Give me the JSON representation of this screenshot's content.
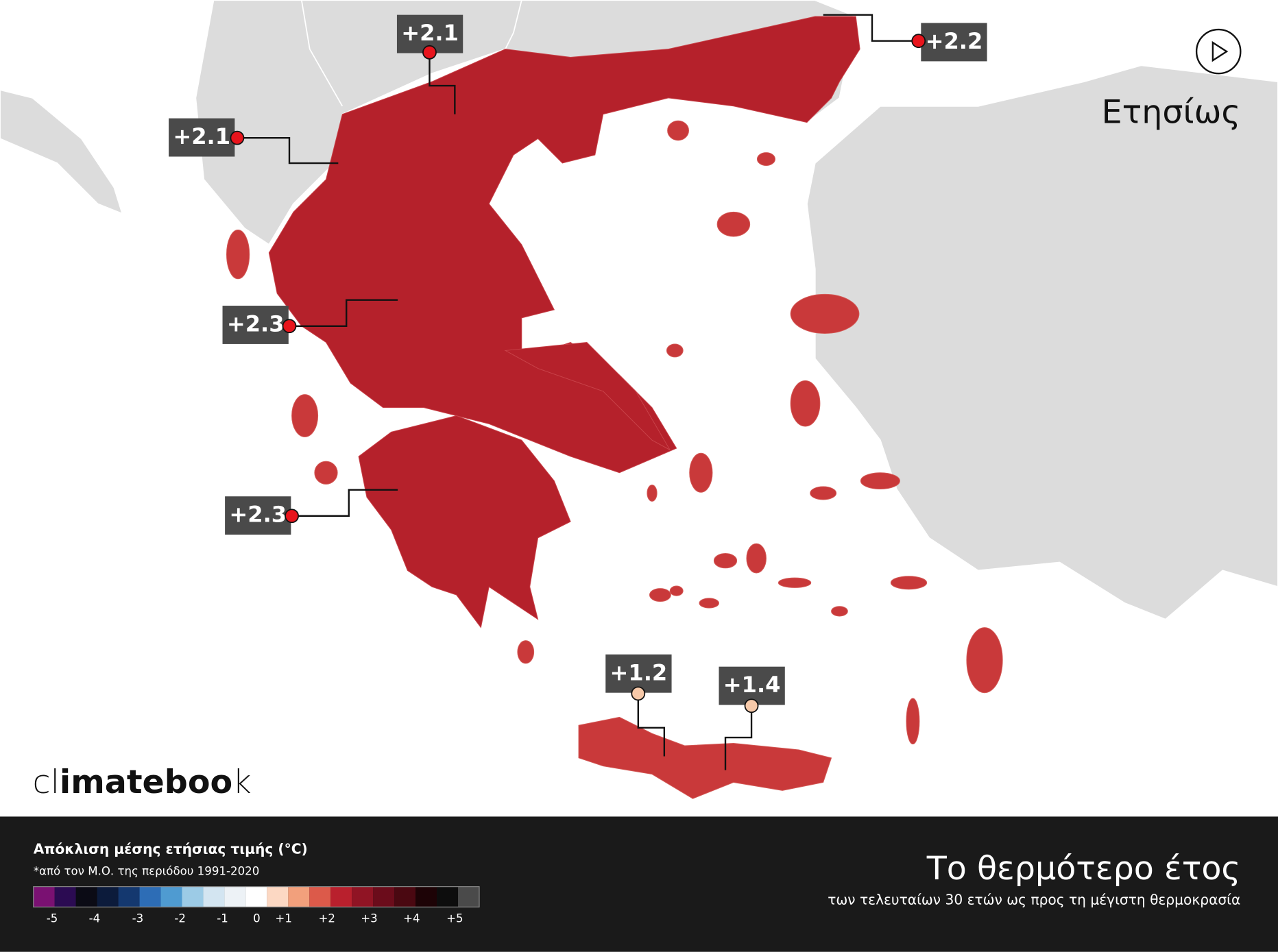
{
  "header": {
    "period": "Ετησίως"
  },
  "logo": {
    "parts": [
      "cl",
      "imateboo",
      "k"
    ]
  },
  "callouts": [
    {
      "label": "+2.1",
      "color": "#e8141c"
    },
    {
      "label": "+2.2",
      "color": "#e8141c"
    },
    {
      "label": "+2.1",
      "color": "#e8141c"
    },
    {
      "label": "+2.3",
      "color": "#e8141c"
    },
    {
      "label": "+2.3",
      "color": "#e8141c"
    },
    {
      "label": "+1.2",
      "color": "#f7c9a9"
    },
    {
      "label": "+1.4",
      "color": "#f7c9a9"
    }
  ],
  "legend": {
    "title": "Απόκλιση μέσης ετήσιας τιμής (°C)",
    "note": "*από τον Μ.Ο. της περιόδου 1991-2020",
    "colors": [
      "#7a1172",
      "#2b0b52",
      "#0b0b15",
      "#0c1b3b",
      "#14386f",
      "#2d6db6",
      "#4f9bd1",
      "#9ccbe6",
      "#d3e5f1",
      "#edf2f6",
      "#ffffff",
      "#fcd8c3",
      "#f2a07c",
      "#dc5a4a",
      "#b9202d",
      "#901424",
      "#6b0c1b",
      "#4a0811",
      "#1d0306",
      "#0d0d0d",
      "#4a4a4a"
    ],
    "ticks": [
      "-5",
      "-4",
      "-3",
      "-2",
      "-1",
      "0",
      "+1",
      "+2",
      "+3",
      "+4",
      "+5"
    ]
  },
  "footer": {
    "title": "Το θερμότερο έτος",
    "subtitle": "των τελευταίων 30 ετών ως προς τη μέγιστη θερμοκρασία"
  }
}
